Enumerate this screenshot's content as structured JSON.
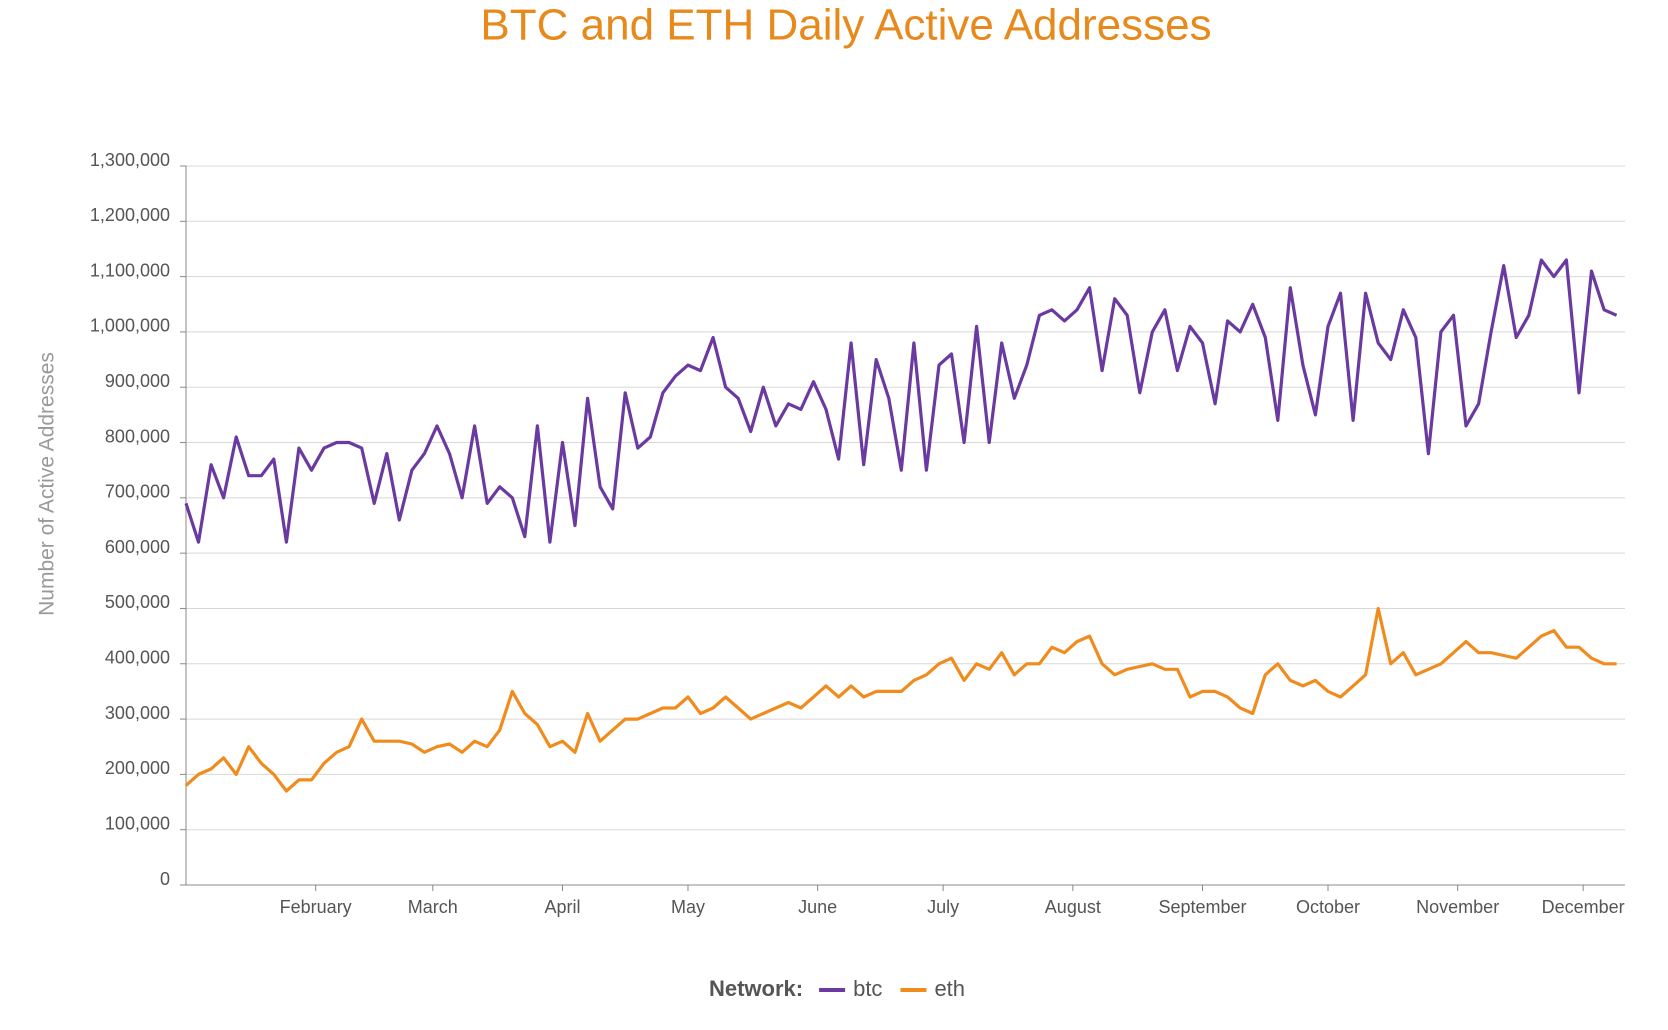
{
  "chart_data": {
    "type": "line",
    "title": "BTC and ETH Daily Active Addresses",
    "y_label": "Number of Active Addresses",
    "legend_title": "Network:",
    "legend_position": "bottom",
    "grid": true,
    "x": [
      1,
      4,
      7,
      10,
      13,
      16,
      19,
      22,
      25,
      28,
      31,
      34,
      37,
      40,
      43,
      46,
      49,
      52,
      55,
      58,
      61,
      64,
      67,
      70,
      73,
      76,
      79,
      82,
      85,
      88,
      91,
      94,
      97,
      100,
      103,
      106,
      109,
      112,
      115,
      118,
      121,
      124,
      127,
      130,
      133,
      136,
      139,
      142,
      145,
      148,
      151,
      154,
      157,
      160,
      163,
      166,
      169,
      172,
      175,
      178,
      181,
      184,
      187,
      190,
      193,
      196,
      199,
      202,
      205,
      208,
      211,
      214,
      217,
      220,
      223,
      226,
      229,
      232,
      235,
      238,
      241,
      244,
      247,
      250,
      253,
      256,
      259,
      262,
      265,
      268,
      271,
      274,
      277,
      280,
      283,
      286,
      289,
      292,
      295,
      298,
      301,
      304,
      307,
      310,
      313,
      316,
      319,
      322,
      325,
      328,
      331,
      334,
      337,
      340,
      343
    ],
    "xlim": [
      1,
      345
    ],
    "xticks": [
      {
        "value": 32,
        "label": "February"
      },
      {
        "value": 60,
        "label": "March"
      },
      {
        "value": 91,
        "label": "April"
      },
      {
        "value": 121,
        "label": "May"
      },
      {
        "value": 152,
        "label": "June"
      },
      {
        "value": 182,
        "label": "July"
      },
      {
        "value": 213,
        "label": "August"
      },
      {
        "value": 244,
        "label": "September"
      },
      {
        "value": 274,
        "label": "October"
      },
      {
        "value": 305,
        "label": "November"
      },
      {
        "value": 335,
        "label": "December"
      }
    ],
    "ylim": [
      0,
      1300000
    ],
    "yticks": [
      0,
      {
        "value": 100000,
        "label": "100,000"
      },
      {
        "value": 200000,
        "label": "200,000"
      },
      {
        "value": 300000,
        "label": "300,000"
      },
      {
        "value": 400000,
        "label": "400,000"
      },
      {
        "value": 500000,
        "label": "500,000"
      },
      {
        "value": 600000,
        "label": "600,000"
      },
      {
        "value": 700000,
        "label": "700,000"
      },
      {
        "value": 800000,
        "label": "800,000"
      },
      {
        "value": 900000,
        "label": "900,000"
      },
      {
        "value": 1000000,
        "label": "1,000,000"
      },
      {
        "value": 1100000,
        "label": "1,100,000"
      },
      {
        "value": 1200000,
        "label": "1,200,000"
      },
      {
        "value": 1300000,
        "label": "1,300,000"
      }
    ],
    "series": [
      {
        "name": "btc",
        "color": "#6a3aa0",
        "values": [
          690000,
          620000,
          760000,
          700000,
          810000,
          740000,
          740000,
          770000,
          620000,
          790000,
          750000,
          790000,
          800000,
          800000,
          790000,
          690000,
          780000,
          660000,
          750000,
          780000,
          830000,
          780000,
          700000,
          830000,
          690000,
          720000,
          700000,
          630000,
          830000,
          620000,
          800000,
          650000,
          880000,
          720000,
          680000,
          890000,
          790000,
          810000,
          890000,
          920000,
          940000,
          930000,
          990000,
          900000,
          880000,
          820000,
          900000,
          830000,
          870000,
          860000,
          910000,
          860000,
          770000,
          980000,
          760000,
          950000,
          880000,
          750000,
          980000,
          750000,
          940000,
          960000,
          800000,
          1010000,
          800000,
          980000,
          880000,
          940000,
          1030000,
          1040000,
          1020000,
          1040000,
          1080000,
          930000,
          1060000,
          1030000,
          890000,
          1000000,
          1040000,
          930000,
          1010000,
          980000,
          870000,
          1020000,
          1000000,
          1050000,
          990000,
          840000,
          1080000,
          940000,
          850000,
          1010000,
          1070000,
          840000,
          1070000,
          980000,
          950000,
          1040000,
          990000,
          780000,
          1000000,
          1030000,
          830000,
          870000,
          1000000,
          1120000,
          990000,
          1030000,
          1130000,
          1100000,
          1130000,
          890000,
          1110000,
          1040000,
          1030000
        ]
      },
      {
        "name": "eth",
        "color": "#f08c1e",
        "values": [
          180000,
          200000,
          210000,
          230000,
          200000,
          250000,
          220000,
          200000,
          170000,
          190000,
          190000,
          220000,
          240000,
          250000,
          300000,
          260000,
          260000,
          260000,
          255000,
          240000,
          250000,
          255000,
          240000,
          260000,
          250000,
          280000,
          350000,
          310000,
          290000,
          250000,
          260000,
          240000,
          310000,
          260000,
          280000,
          300000,
          300000,
          310000,
          320000,
          320000,
          340000,
          310000,
          320000,
          340000,
          320000,
          300000,
          310000,
          320000,
          330000,
          320000,
          340000,
          360000,
          340000,
          360000,
          340000,
          350000,
          350000,
          350000,
          370000,
          380000,
          400000,
          410000,
          370000,
          400000,
          390000,
          420000,
          380000,
          400000,
          400000,
          430000,
          420000,
          440000,
          450000,
          400000,
          380000,
          390000,
          395000,
          400000,
          390000,
          390000,
          340000,
          350000,
          350000,
          340000,
          320000,
          310000,
          380000,
          400000,
          370000,
          360000,
          370000,
          350000,
          340000,
          360000,
          380000,
          500000,
          400000,
          420000,
          380000,
          390000,
          400000,
          420000,
          440000,
          420000,
          420000,
          415000,
          410000,
          430000,
          450000,
          460000,
          430000,
          430000,
          410000,
          400000,
          400000
        ]
      }
    ]
  }
}
